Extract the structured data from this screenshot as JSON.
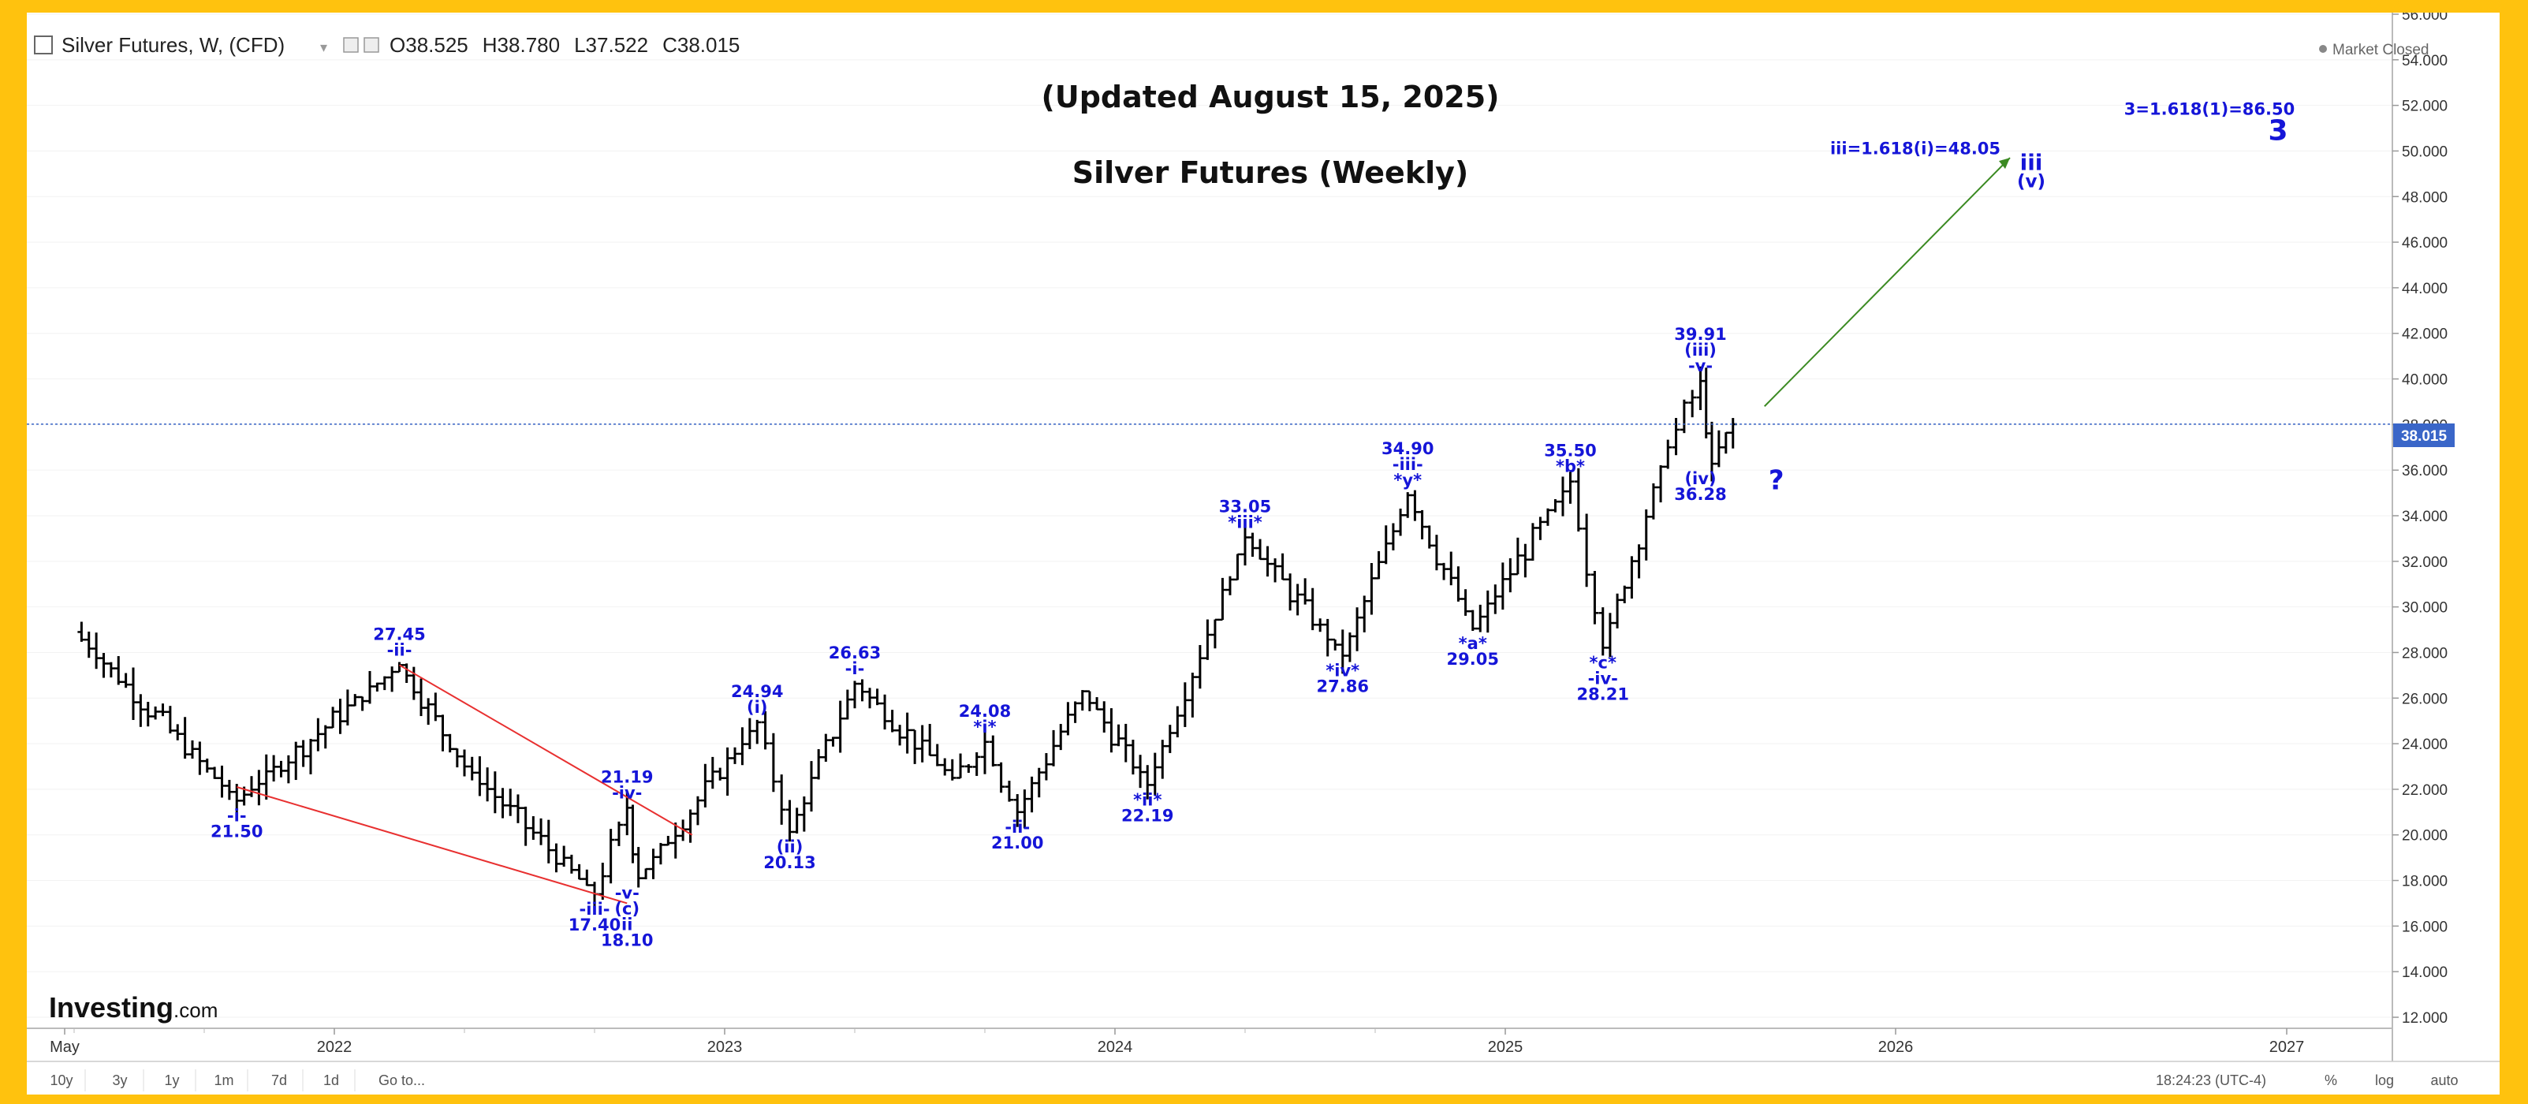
{
  "header": {
    "symbol": "Silver Futures, W, (CFD)",
    "open_label": "O",
    "open": "38.525",
    "high_label": "H",
    "high": "38.780",
    "low_label": "L",
    "low": "37.522",
    "close_label": "C",
    "close": "38.015",
    "market_status": "Market Closed"
  },
  "brand": {
    "name": "Investing",
    "suffix": ".com"
  },
  "bottom_toolbar": {
    "ranges": [
      "10y",
      "3y",
      "1y",
      "1m",
      "7d",
      "1d"
    ],
    "goto": "Go to...",
    "time": "18:24:23 (UTC-4)",
    "toggles": [
      "%",
      "log",
      "auto"
    ]
  },
  "colors": {
    "wave_label": "#1515d8",
    "bars": "#000000",
    "price_line": "#3a66c8",
    "wedge": "#e83030",
    "projection": "#3b8a22",
    "border": "#ffc20e"
  },
  "chart_data": {
    "type": "ohlc",
    "title": "Silver Futures (Weekly)",
    "subtitle": "(Updated August 15, 2025)",
    "timeframe": "Weekly",
    "last_price": "38.015",
    "ylim": [
      12,
      56
    ],
    "y_ticks": [
      "12.000",
      "14.000",
      "16.000",
      "18.000",
      "20.000",
      "22.000",
      "24.000",
      "26.000",
      "28.000",
      "30.000",
      "32.000",
      "34.000",
      "36.000",
      "38.000",
      "40.000",
      "42.000",
      "44.000",
      "46.000",
      "48.000",
      "50.000",
      "52.000",
      "54.000",
      "56.000"
    ],
    "x_ticks": [
      "May",
      "2022",
      "2023",
      "2024",
      "2025",
      "2026",
      "2027"
    ],
    "swing_points": [
      {
        "date": "2021-05",
        "price": 28.9
      },
      {
        "date": "2021-10",
        "price": 21.5
      },
      {
        "date": "2022-03",
        "price": 27.45
      },
      {
        "date": "2022-05",
        "price": 23.0
      },
      {
        "date": "2022-09",
        "price": 17.4
      },
      {
        "date": "2022-10",
        "price": 21.19
      },
      {
        "date": "2022-10",
        "price": 18.1
      },
      {
        "date": "2023-02",
        "price": 24.94
      },
      {
        "date": "2023-03",
        "price": 20.13
      },
      {
        "date": "2023-05",
        "price": 26.63
      },
      {
        "date": "2023-08",
        "price": 22.5
      },
      {
        "date": "2023-09",
        "price": 24.08
      },
      {
        "date": "2023-10",
        "price": 21.0
      },
      {
        "date": "2023-12",
        "price": 26.3
      },
      {
        "date": "2024-02",
        "price": 22.19
      },
      {
        "date": "2024-05",
        "price": 33.05
      },
      {
        "date": "2024-08",
        "price": 27.86
      },
      {
        "date": "2024-10",
        "price": 34.9
      },
      {
        "date": "2024-12",
        "price": 29.05
      },
      {
        "date": "2025-03",
        "price": 35.5
      },
      {
        "date": "2025-04",
        "price": 28.21
      },
      {
        "date": "2025-06",
        "price": 37.0
      },
      {
        "date": "2025-07",
        "price": 39.91
      },
      {
        "date": "2025-07",
        "price": 36.28
      },
      {
        "date": "2025-08",
        "price": 38.015
      }
    ],
    "wave_labels": [
      {
        "lines": [
          "-i-",
          "21.50"
        ],
        "date": "2021-10",
        "price": 21.5
      },
      {
        "lines": [
          "27.45",
          "-ii-"
        ],
        "date": "2022-03",
        "price": 27.45
      },
      {
        "lines": [
          "21.19",
          "-iv-"
        ],
        "date": "2022-10",
        "price": 21.19
      },
      {
        "lines": [
          "-iii-",
          "17.40"
        ],
        "date": "2022-09",
        "price": 17.4
      },
      {
        "lines": [
          "-v-",
          "(c)",
          "ii",
          "18.10"
        ],
        "date": "2022-10",
        "price": 18.1
      },
      {
        "lines": [
          "24.94",
          "(i)"
        ],
        "date": "2023-02",
        "price": 24.94
      },
      {
        "lines": [
          "(ii)",
          "20.13"
        ],
        "date": "2023-03",
        "price": 20.13
      },
      {
        "lines": [
          "26.63",
          "-i-"
        ],
        "date": "2023-05",
        "price": 26.63
      },
      {
        "lines": [
          "24.08",
          "*i*"
        ],
        "date": "2023-09",
        "price": 24.08
      },
      {
        "lines": [
          "-ii-",
          "21.00"
        ],
        "date": "2023-10",
        "price": 21.0
      },
      {
        "lines": [
          "*ii*",
          "22.19"
        ],
        "date": "2024-02",
        "price": 22.19
      },
      {
        "lines": [
          "33.05",
          "*iii*"
        ],
        "date": "2024-05",
        "price": 33.05
      },
      {
        "lines": [
          "*iv*",
          "27.86"
        ],
        "date": "2024-08",
        "price": 27.86
      },
      {
        "lines": [
          "34.90",
          "-iii-",
          "*y*"
        ],
        "date": "2024-10",
        "price": 34.9
      },
      {
        "lines": [
          "*a*",
          "29.05"
        ],
        "date": "2024-12",
        "price": 29.05
      },
      {
        "lines": [
          "35.50",
          "*b*"
        ],
        "date": "2025-03",
        "price": 35.5
      },
      {
        "lines": [
          "*c*",
          "-iv-",
          "28.21"
        ],
        "date": "2025-04",
        "price": 28.21
      },
      {
        "lines": [
          "39.91",
          "(iii)",
          "-v-"
        ],
        "date": "2025-07",
        "price": 39.91
      },
      {
        "lines": [
          "(iv)",
          "36.28"
        ],
        "date": "2025-07",
        "price": 36.28
      },
      {
        "lines": [
          "?"
        ],
        "date": "2025-08",
        "price": 35.5
      }
    ],
    "targets": [
      {
        "text": "iii=1.618(i)=48.05",
        "marks": [
          "iii",
          "(v)"
        ],
        "price": 50.0
      },
      {
        "text": "3=1.618(1)=86.50",
        "marks": [
          "3"
        ],
        "price": 52.0
      }
    ]
  }
}
